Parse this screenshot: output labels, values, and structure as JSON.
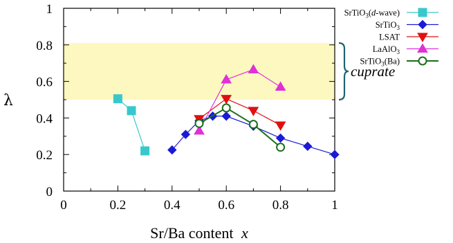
{
  "chart_data": {
    "type": "line",
    "xlabel_main": "Sr/Ba content",
    "xlabel_var": "x",
    "ylabel": "λ",
    "xlim": [
      0,
      1
    ],
    "ylim": [
      0,
      1
    ],
    "xticks": [
      "0",
      "0.2",
      "0.4",
      "0.6",
      "0.8",
      "1"
    ],
    "yticks": [
      "0",
      "0.2",
      "0.4",
      "0.6",
      "0.8",
      "1"
    ],
    "grid": false,
    "legend_position": "outside-right",
    "band": {
      "y0": 0.5,
      "y1": 0.81,
      "color": "#fcf8c0",
      "label": "cuprate"
    },
    "series": [
      {
        "name_main": "SrTiO",
        "name_sub": "3",
        "name_suffix": "(d-wave)",
        "color": "#38c8cc",
        "marker": "square",
        "fill": true,
        "x": [
          0.2,
          0.25,
          0.3
        ],
        "y": [
          0.505,
          0.44,
          0.22
        ]
      },
      {
        "name_main": "SrTiO",
        "name_sub": "3",
        "name_suffix": "",
        "color": "#1a1ad8",
        "marker": "diamond",
        "fill": true,
        "x": [
          0.4,
          0.45,
          0.5,
          0.55,
          0.6,
          0.7,
          0.8,
          0.9,
          1.0
        ],
        "y": [
          0.225,
          0.31,
          0.385,
          0.41,
          0.41,
          0.355,
          0.29,
          0.245,
          0.2
        ]
      },
      {
        "name_main": "LSAT",
        "name_sub": "",
        "name_suffix": "",
        "color": "#e01010",
        "marker": "triangle-down",
        "fill": true,
        "x": [
          0.5,
          0.6,
          0.7,
          0.8
        ],
        "y": [
          0.395,
          0.505,
          0.44,
          0.36
        ]
      },
      {
        "name_main": "LaAlO",
        "name_sub": "3",
        "name_suffix": "",
        "color": "#e030d8",
        "marker": "triangle-up",
        "fill": true,
        "x": [
          0.5,
          0.6,
          0.7,
          0.8
        ],
        "y": [
          0.33,
          0.61,
          0.665,
          0.57
        ]
      },
      {
        "name_main": "SrTiO",
        "name_sub": "3",
        "name_suffix": "(Ba)",
        "color": "#1a6e1a",
        "marker": "circle",
        "fill": false,
        "x": [
          0.5,
          0.6,
          0.7,
          0.8
        ],
        "y": [
          0.37,
          0.455,
          0.365,
          0.24
        ]
      }
    ]
  }
}
